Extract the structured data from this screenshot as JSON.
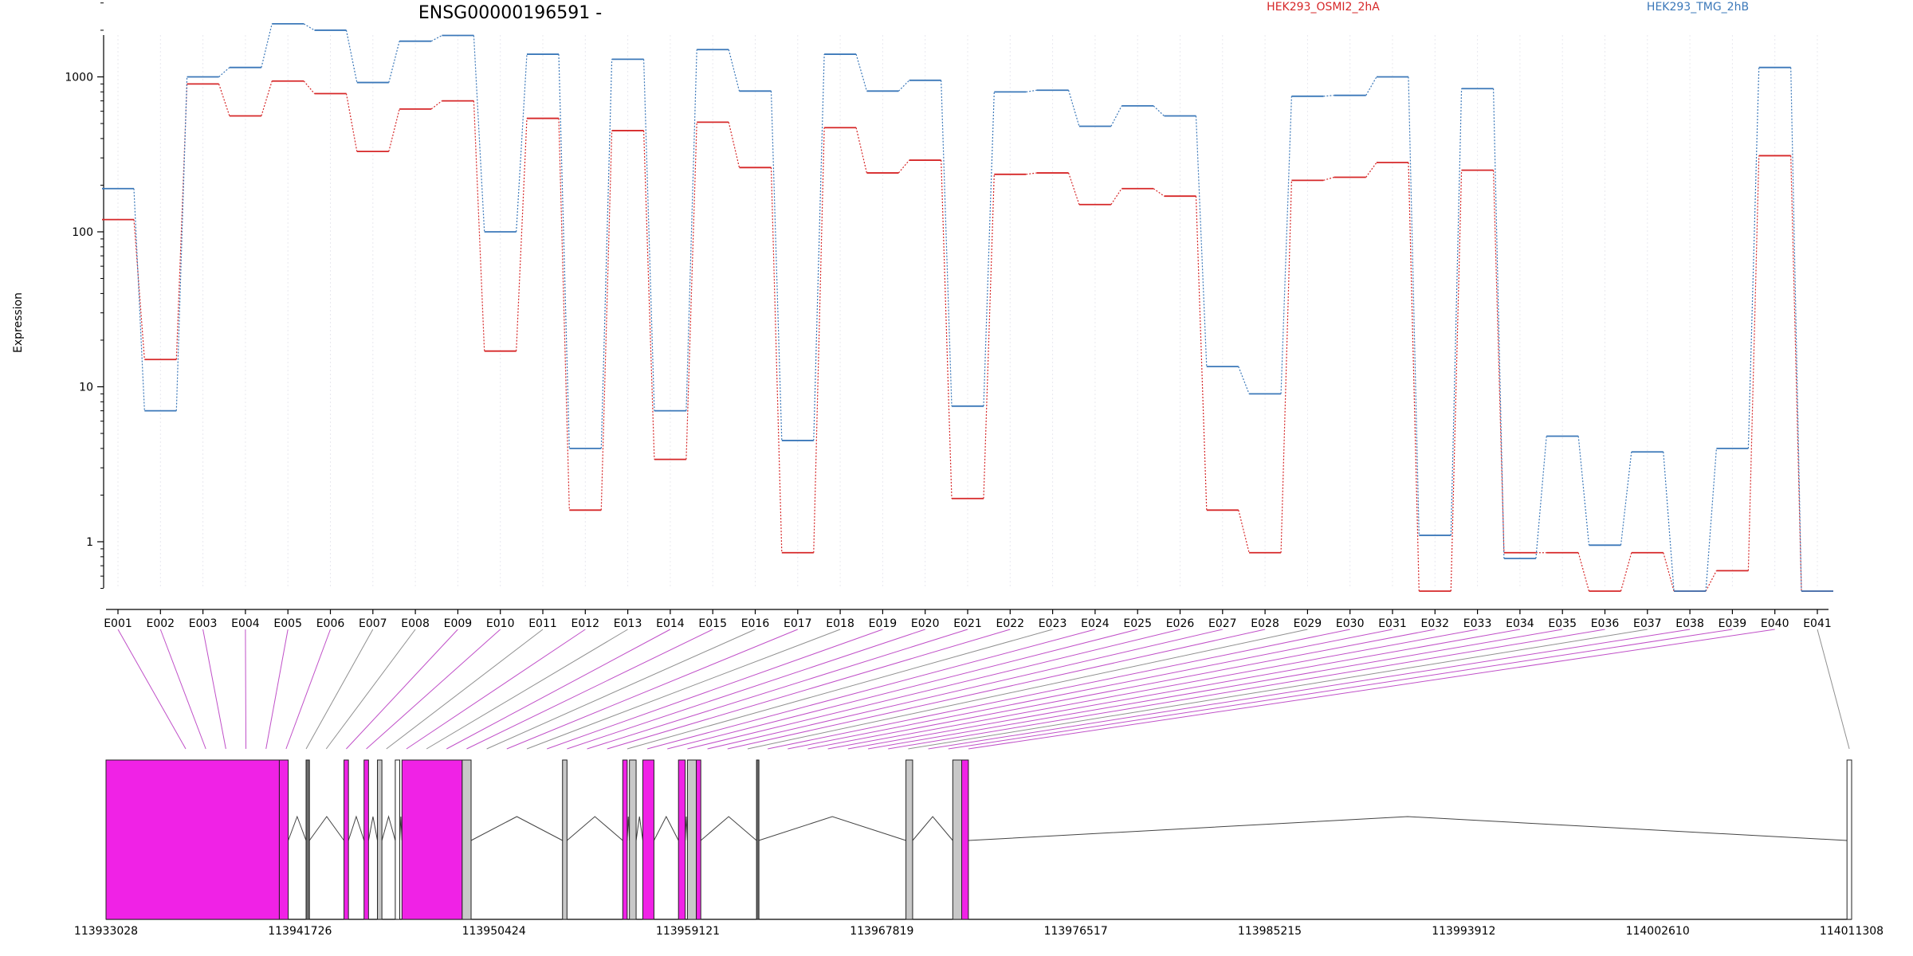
{
  "chart_data": {
    "type": "line",
    "title": "ENSG00000196591 -",
    "ylabel": "Expression",
    "y_scale": "log",
    "y_ticks": [
      "1",
      "10",
      "100",
      "1000"
    ],
    "y_tick_values": [
      1,
      10,
      100,
      1000
    ],
    "ylim": [
      0.5,
      3000
    ],
    "categories": [
      "E001",
      "E002",
      "E003",
      "E004",
      "E005",
      "E006",
      "E007",
      "E008",
      "E009",
      "E010",
      "E011",
      "E012",
      "E013",
      "E014",
      "E015",
      "E016",
      "E017",
      "E018",
      "E019",
      "E020",
      "E021",
      "E022",
      "E023",
      "E024",
      "E025",
      "E026",
      "E027",
      "E028",
      "E029",
      "E030",
      "E031",
      "E032",
      "E033",
      "E034",
      "E035",
      "E036",
      "E037",
      "E038",
      "E039",
      "E040",
      "E041"
    ],
    "series": [
      {
        "name": "HEK293_OSMI2_2hA",
        "color": "#d62728",
        "values": [
          120,
          15,
          900,
          560,
          940,
          780,
          330,
          620,
          700,
          17,
          540,
          1.6,
          450,
          3.4,
          510,
          260,
          0.85,
          470,
          240,
          290,
          1.9,
          235,
          240,
          150,
          190,
          170,
          1.6,
          0.85,
          215,
          225,
          280,
          0.48,
          250,
          0.85,
          0.85,
          0.48,
          0.85,
          0.48,
          0.65,
          310,
          0.48
        ]
      },
      {
        "name": "HEK293_TMG_2hB",
        "color": "#3b78b9",
        "values": [
          190,
          7,
          1000,
          1150,
          2200,
          2000,
          920,
          1700,
          1850,
          100,
          1400,
          4,
          1300,
          7,
          1500,
          810,
          4.5,
          1400,
          810,
          950,
          7.5,
          800,
          820,
          480,
          650,
          560,
          13.5,
          9,
          750,
          760,
          1000,
          1.1,
          840,
          0.78,
          4.8,
          0.95,
          3.8,
          0.48,
          4,
          1150,
          0.48
        ]
      }
    ],
    "gene_track": {
      "coordinate_ticks": [
        "113933028",
        "113941726",
        "113950424",
        "113959121",
        "113967819",
        "113976517",
        "113985215",
        "113993912",
        "114002610",
        "114011308"
      ],
      "coordinate_start": 113933028,
      "coordinate_end": 114011308,
      "highlight_color": "#f022e6",
      "exon_fill_highlight": "#f022e6",
      "exon_fill_normal": "#ffffff",
      "exon_fill_gray": "#c8c8c8",
      "highlighted_exons": [
        "E001",
        "E002",
        "E003",
        "E004",
        "E005",
        "E006",
        "E009",
        "E010",
        "E012",
        "E014",
        "E015",
        "E017",
        "E019",
        "E020",
        "E021",
        "E022",
        "E024",
        "E025",
        "E026",
        "E027",
        "E028",
        "E030",
        "E031",
        "E032",
        "E033",
        "E034",
        "E035",
        "E036",
        "E038",
        "E039",
        "E040"
      ],
      "exons": [
        {
          "start": 113933028,
          "end": 113940800,
          "fill": "highlight"
        },
        {
          "start": 113940800,
          "end": 113941200,
          "fill": "highlight"
        },
        {
          "start": 113942000,
          "end": 113942150,
          "fill": "dark"
        },
        {
          "start": 113943700,
          "end": 113943900,
          "fill": "highlight"
        },
        {
          "start": 113944600,
          "end": 113944800,
          "fill": "highlight"
        },
        {
          "start": 113945200,
          "end": 113945400,
          "fill": "gray"
        },
        {
          "start": 113946000,
          "end": 113946200,
          "fill": "normal"
        },
        {
          "start": 113946300,
          "end": 113949000,
          "fill": "highlight"
        },
        {
          "start": 113949000,
          "end": 113949400,
          "fill": "gray"
        },
        {
          "start": 113953500,
          "end": 113953700,
          "fill": "gray"
        },
        {
          "start": 113956200,
          "end": 113956400,
          "fill": "highlight"
        },
        {
          "start": 113956500,
          "end": 113956800,
          "fill": "gray"
        },
        {
          "start": 113957100,
          "end": 113957600,
          "fill": "highlight"
        },
        {
          "start": 113958700,
          "end": 113959000,
          "fill": "highlight"
        },
        {
          "start": 113959100,
          "end": 113959500,
          "fill": "gray"
        },
        {
          "start": 113959500,
          "end": 113959700,
          "fill": "highlight"
        },
        {
          "start": 113962200,
          "end": 113962300,
          "fill": "dark"
        },
        {
          "start": 113968900,
          "end": 113969200,
          "fill": "gray"
        },
        {
          "start": 113971000,
          "end": 113971400,
          "fill": "gray"
        },
        {
          "start": 113971400,
          "end": 113971700,
          "fill": "highlight"
        },
        {
          "start": 114011100,
          "end": 114011308,
          "fill": "normal"
        }
      ]
    }
  }
}
